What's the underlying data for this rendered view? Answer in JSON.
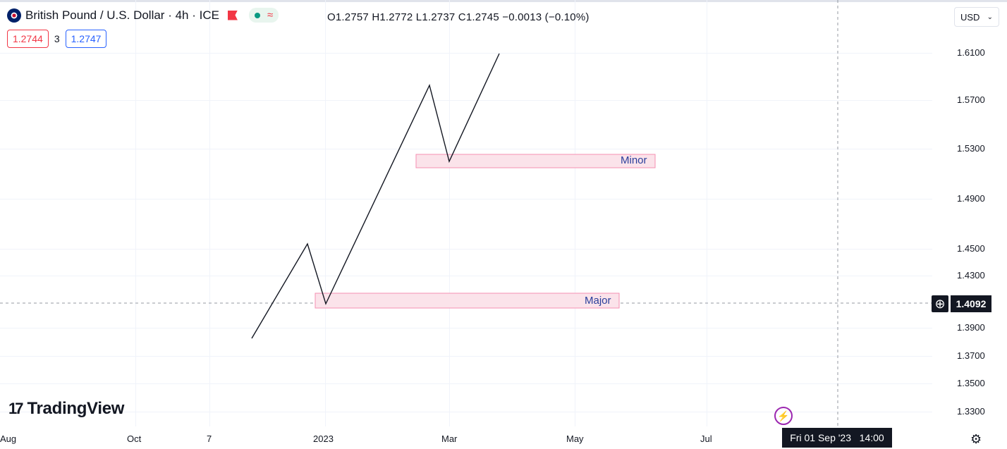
{
  "symbol": {
    "name": "British Pound / U.S. Dollar · 4h · ICE",
    "status_icon": "≈"
  },
  "ohlc": "O1.2757  H1.2772  L1.2737  C1.2745  −0.0013 (−0.10%)",
  "quote": {
    "sell": "1.2744",
    "spread": "3",
    "buy": "1.2747"
  },
  "currency": "USD",
  "y_axis": [
    "1.6100",
    "1.5700",
    "1.5300",
    "1.4900",
    "1.4500",
    "1.4300",
    "1.3900",
    "1.3700",
    "1.3500",
    "1.3300"
  ],
  "x_axis": [
    "Aug",
    "Oct",
    "7",
    "2023",
    "Mar",
    "May",
    "Jul"
  ],
  "crosshair": {
    "price": "1.4092",
    "time": "Fri 01 Sep '23   14:00"
  },
  "zones": {
    "minor": "Minor",
    "major": "Major"
  },
  "brand": "TradingView",
  "colors": {
    "zone_fill": "#fbe3ea",
    "zone_border": "#f48fb1",
    "line": "#131722",
    "accent_red": "#f23645",
    "accent_blue": "#2962ff"
  }
}
